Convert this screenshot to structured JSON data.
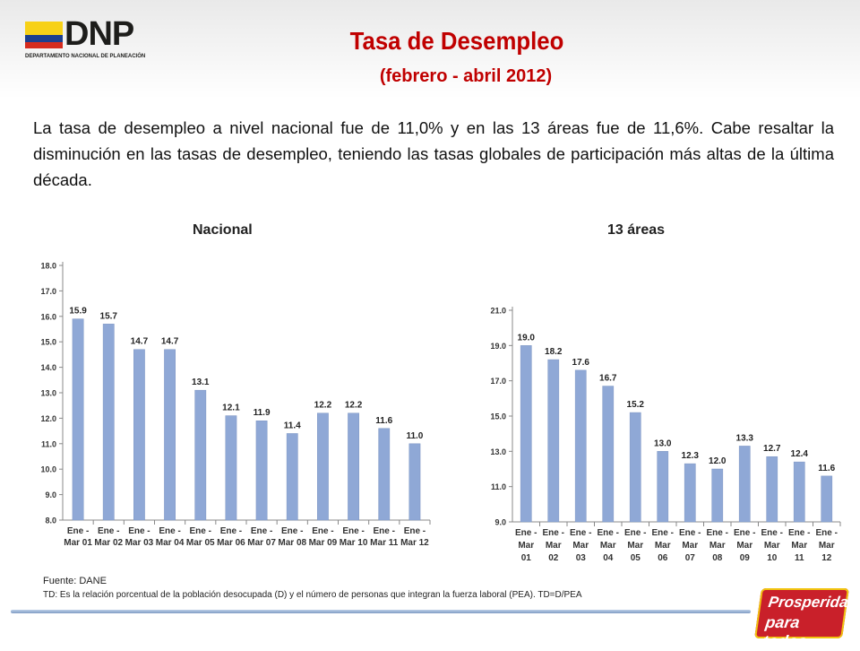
{
  "header": {
    "logo_text": "DNP",
    "logo_subtitle": "DEPARTAMENTO NACIONAL DE PLANEACIÓN",
    "title": "Tasa de Desempleo",
    "subtitle": "(febrero -  abril 2012)"
  },
  "intro": "La tasa de desempleo a nivel nacional fue de 11,0% y en las 13 áreas fue de 11,6%. Cabe resaltar la disminución en las tasas de desempleo, teniendo las tasas globales de participación más altas de la última década.",
  "chart_data": [
    {
      "type": "bar",
      "title": "Nacional",
      "categories": [
        "Ene - Mar 01",
        "Ene - Mar 02",
        "Ene - Mar 03",
        "Ene - Mar 04",
        "Ene - Mar 05",
        "Ene - Mar 06",
        "Ene - Mar 07",
        "Ene - Mar 08",
        "Ene - Mar 09",
        "Ene - Mar 10",
        "Ene - Mar 11",
        "Ene - Mar 12"
      ],
      "category_lines": [
        [
          "Ene -",
          "Mar 01"
        ],
        [
          "Ene -",
          "Mar 02"
        ],
        [
          "Ene -",
          "Mar 03"
        ],
        [
          "Ene -",
          "Mar 04"
        ],
        [
          "Ene -",
          "Mar 05"
        ],
        [
          "Ene -",
          "Mar 06"
        ],
        [
          "Ene -",
          "Mar 07"
        ],
        [
          "Ene -",
          "Mar 08"
        ],
        [
          "Ene -",
          "Mar 09"
        ],
        [
          "Ene -",
          "Mar 10"
        ],
        [
          "Ene -",
          "Mar 11"
        ],
        [
          "Ene -",
          "Mar 12"
        ]
      ],
      "values": [
        15.9,
        15.7,
        14.7,
        14.7,
        13.1,
        12.1,
        11.9,
        11.4,
        12.2,
        12.2,
        11.6,
        11.0
      ],
      "value_labels": [
        "15.9",
        "15.7",
        "14.7",
        "14.7",
        "13.1",
        "12.1",
        "11.9",
        "11.4",
        "12.2",
        "12.2",
        "11.6",
        "11.0"
      ],
      "ylim": [
        8.0,
        18.0
      ],
      "yticks": [
        "8.0",
        "9.0",
        "10.0",
        "11.0",
        "12.0",
        "13.0",
        "14.0",
        "15.0",
        "16.0",
        "17.0",
        "18.0"
      ],
      "xlabel": "",
      "ylabel": "",
      "grid": false,
      "bar_color": "#8fa8d6"
    },
    {
      "type": "bar",
      "title": "13 áreas",
      "categories": [
        "Ene - Mar 01",
        "Ene - Mar 02",
        "Ene - Mar 03",
        "Ene - Mar 04",
        "Ene - Mar 05",
        "Ene - Mar 06",
        "Ene - Mar 07",
        "Ene - Mar 08",
        "Ene - Mar 09",
        "Ene - Mar 10",
        "Ene - Mar 11",
        "Ene - Mar 12"
      ],
      "category_lines": [
        [
          "Ene -",
          "Mar",
          "01"
        ],
        [
          "Ene -",
          "Mar",
          "02"
        ],
        [
          "Ene -",
          "Mar",
          "03"
        ],
        [
          "Ene -",
          "Mar",
          "04"
        ],
        [
          "Ene -",
          "Mar",
          "05"
        ],
        [
          "Ene -",
          "Mar",
          "06"
        ],
        [
          "Ene -",
          "Mar",
          "07"
        ],
        [
          "Ene -",
          "Mar",
          "08"
        ],
        [
          "Ene -",
          "Mar",
          "09"
        ],
        [
          "Ene -",
          "Mar",
          "10"
        ],
        [
          "Ene -",
          "Mar",
          "11"
        ],
        [
          "Ene -",
          "Mar",
          "12"
        ]
      ],
      "values": [
        19.0,
        18.2,
        17.6,
        16.7,
        15.2,
        13.0,
        12.3,
        12.0,
        13.3,
        12.7,
        12.4,
        11.6
      ],
      "value_labels": [
        "19.0",
        "18.2",
        "17.6",
        "16.7",
        "15.2",
        "13.0",
        "12.3",
        "12.0",
        "13.3",
        "12.7",
        "12.4",
        "11.6"
      ],
      "ylim": [
        9.0,
        21.0
      ],
      "yticks": [
        "9.0",
        "11.0",
        "13.0",
        "15.0",
        "17.0",
        "19.0",
        "21.0"
      ],
      "xlabel": "",
      "ylabel": "",
      "grid": false,
      "bar_color": "#8fa8d6"
    }
  ],
  "footer": {
    "source": "Fuente: DANE",
    "definition": "TD:  Es la relación porcentual de la población desocupada (D) y el número de personas que integran la fuerza laboral (PEA). TD=D/PEA"
  },
  "badge": {
    "line1": "Prosperidad",
    "line2": "para todos"
  }
}
